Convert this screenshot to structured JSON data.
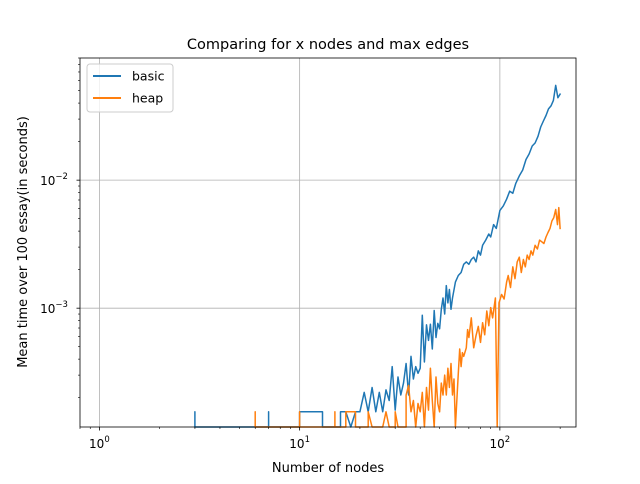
{
  "chart_data": {
    "type": "line",
    "title": "Comparing for x nodes and max edges",
    "xlabel": "Number of nodes",
    "ylabel": "Mean time over 100 essay(in seconds)",
    "xscale": "log",
    "yscale": "log",
    "xlim": [
      0.8,
      240
    ],
    "ylim": [
      0.000118,
      0.09
    ],
    "grid": true,
    "legend_position": "top-left",
    "x_ticks": [
      {
        "value": 1,
        "base": "10",
        "exp": "0"
      },
      {
        "value": 10,
        "base": "10",
        "exp": "1"
      },
      {
        "value": 100,
        "base": "10",
        "exp": "2"
      }
    ],
    "y_ticks": [
      {
        "value": 0.001,
        "base": "10",
        "exp": "−3"
      },
      {
        "value": 0.01,
        "base": "10",
        "exp": "−2"
      }
    ],
    "series": [
      {
        "name": "basic",
        "color": "#1f77b4",
        "points": [
          [
            3,
            0.000118
          ],
          [
            3,
            0.000155
          ],
          [
            3,
            0.000118
          ],
          [
            7,
            0.000118
          ],
          [
            7,
            0.000155
          ],
          [
            7,
            0.000118
          ],
          [
            10,
            0.000118
          ],
          [
            10,
            0.000155
          ],
          [
            13,
            0.000155
          ],
          [
            13,
            0.000118
          ],
          [
            16,
            0.000118
          ],
          [
            16,
            0.000155
          ],
          [
            17,
            0.000155
          ],
          [
            18,
            0.000118
          ],
          [
            19,
            0.000155
          ],
          [
            20,
            0.000155
          ],
          [
            21,
            0.00022
          ],
          [
            22,
            0.000155
          ],
          [
            23,
            0.00024
          ],
          [
            24,
            0.000155
          ],
          [
            25,
            0.00022
          ],
          [
            26,
            0.000155
          ],
          [
            27,
            0.00023
          ],
          [
            28,
            0.00019
          ],
          [
            29,
            0.00035
          ],
          [
            30,
            0.00016
          ],
          [
            31,
            0.00029
          ],
          [
            32,
            0.00021
          ],
          [
            33,
            0.00026
          ],
          [
            34,
            0.00037
          ],
          [
            35,
            0.00021
          ],
          [
            36,
            0.00042
          ],
          [
            37,
            0.00028
          ],
          [
            38,
            0.00035
          ],
          [
            39,
            0.00031
          ],
          [
            40,
            0.00034
          ],
          [
            41,
            0.00088
          ],
          [
            42,
            0.00038
          ],
          [
            43,
            0.00074
          ],
          [
            44,
            0.00056
          ],
          [
            45,
            0.00075
          ],
          [
            46,
            0.00048
          ],
          [
            47,
            0.00096
          ],
          [
            48,
            0.00059
          ],
          [
            49,
            0.00076
          ],
          [
            50,
            0.00069
          ],
          [
            51,
            0.00098
          ],
          [
            52,
            0.0012
          ],
          [
            53,
            0.0009
          ],
          [
            54,
            0.0015
          ],
          [
            55,
            0.0011
          ],
          [
            56,
            0.0014
          ],
          [
            57,
            0.00098
          ],
          [
            58,
            0.0012
          ],
          [
            60,
            0.0016
          ],
          [
            62,
            0.0018
          ],
          [
            64,
            0.0019
          ],
          [
            66,
            0.0022
          ],
          [
            68,
            0.0023
          ],
          [
            70,
            0.0022
          ],
          [
            72,
            0.0024
          ],
          [
            74,
            0.0025
          ],
          [
            76,
            0.0023
          ],
          [
            78,
            0.0028
          ],
          [
            80,
            0.0026
          ],
          [
            82,
            0.0031
          ],
          [
            85,
            0.0034
          ],
          [
            88,
            0.0038
          ],
          [
            90,
            0.0036
          ],
          [
            93,
            0.0045
          ],
          [
            96,
            0.0042
          ],
          [
            100,
            0.0058
          ],
          [
            104,
            0.0063
          ],
          [
            108,
            0.0071
          ],
          [
            112,
            0.0082
          ],
          [
            116,
            0.0079
          ],
          [
            120,
            0.0094
          ],
          [
            125,
            0.0108
          ],
          [
            130,
            0.012
          ],
          [
            135,
            0.0145
          ],
          [
            140,
            0.016
          ],
          [
            145,
            0.0185
          ],
          [
            150,
            0.0195
          ],
          [
            155,
            0.022
          ],
          [
            160,
            0.026
          ],
          [
            165,
            0.029
          ],
          [
            170,
            0.032
          ],
          [
            175,
            0.036
          ],
          [
            180,
            0.038
          ],
          [
            185,
            0.042
          ],
          [
            190,
            0.055
          ],
          [
            195,
            0.044
          ],
          [
            200,
            0.047
          ]
        ]
      },
      {
        "name": "heap",
        "color": "#ff7f0e",
        "points": [
          [
            6,
            0.000118
          ],
          [
            6,
            0.000155
          ],
          [
            6,
            0.000118
          ],
          [
            10,
            0.000118
          ],
          [
            10,
            0.000155
          ],
          [
            10,
            0.000118
          ],
          [
            15,
            0.000118
          ],
          [
            15,
            0.000155
          ],
          [
            15,
            0.000118
          ],
          [
            17,
            0.000118
          ],
          [
            17,
            0.000155
          ],
          [
            19,
            0.000155
          ],
          [
            19,
            0.000118
          ],
          [
            22,
            0.000118
          ],
          [
            22,
            0.000155
          ],
          [
            23,
            0.000118
          ],
          [
            26,
            0.000118
          ],
          [
            27,
            0.000155
          ],
          [
            28,
            0.000118
          ],
          [
            30,
            0.000118
          ],
          [
            30,
            0.000155
          ],
          [
            31,
            0.000118
          ],
          [
            34,
            0.000118
          ],
          [
            34,
            0.00021
          ],
          [
            35,
            0.00025
          ],
          [
            36,
            0.000155
          ],
          [
            37,
            0.00019
          ],
          [
            38,
            0.000118
          ],
          [
            39,
            0.00018
          ],
          [
            40,
            0.000155
          ],
          [
            41,
            0.00022
          ],
          [
            42,
            0.000118
          ],
          [
            43,
            0.00024
          ],
          [
            44,
            0.00016
          ],
          [
            45,
            0.00034
          ],
          [
            46,
            0.00019
          ],
          [
            47,
            0.000118
          ],
          [
            48,
            0.00029
          ],
          [
            49,
            0.00018
          ],
          [
            50,
            0.000155
          ],
          [
            51,
            0.00026
          ],
          [
            52,
            0.00021
          ],
          [
            53,
            0.0003
          ],
          [
            54,
            0.00021
          ],
          [
            55,
            0.00034
          ],
          [
            56,
            0.00024
          ],
          [
            57,
            0.00037
          ],
          [
            58,
            0.00021
          ],
          [
            59,
            0.00028
          ],
          [
            60,
            0.000118
          ],
          [
            62,
            0.00031
          ],
          [
            63,
            0.00048
          ],
          [
            64,
            0.00035
          ],
          [
            65,
            0.00045
          ],
          [
            66,
            0.00042
          ],
          [
            68,
            0.00049
          ],
          [
            69,
            0.00068
          ],
          [
            70,
            0.00059
          ],
          [
            72,
            0.00084
          ],
          [
            74,
            0.00049
          ],
          [
            76,
            0.00061
          ],
          [
            78,
            0.00072
          ],
          [
            80,
            0.00054
          ],
          [
            82,
            0.00077
          ],
          [
            84,
            0.00062
          ],
          [
            86,
            0.00095
          ],
          [
            88,
            0.00073
          ],
          [
            90,
            0.00101
          ],
          [
            92,
            0.00084
          ],
          [
            95,
            0.0012
          ],
          [
            97,
            0.000118
          ],
          [
            99,
            0.0011
          ],
          [
            102,
            0.00128
          ],
          [
            105,
            0.00118
          ],
          [
            108,
            0.0016
          ],
          [
            110,
            0.0018
          ],
          [
            113,
            0.00145
          ],
          [
            116,
            0.0021
          ],
          [
            119,
            0.0017
          ],
          [
            122,
            0.0023
          ],
          [
            125,
            0.0025
          ],
          [
            128,
            0.0019
          ],
          [
            131,
            0.0024
          ],
          [
            134,
            0.0021
          ],
          [
            137,
            0.0026
          ],
          [
            140,
            0.0024
          ],
          [
            143,
            0.0028
          ],
          [
            146,
            0.0026
          ],
          [
            150,
            0.0031
          ],
          [
            154,
            0.0029
          ],
          [
            158,
            0.0034
          ],
          [
            162,
            0.0033
          ],
          [
            166,
            0.0032
          ],
          [
            170,
            0.0036
          ],
          [
            174,
            0.0039
          ],
          [
            178,
            0.0042
          ],
          [
            182,
            0.0048
          ],
          [
            186,
            0.0051
          ],
          [
            190,
            0.0059
          ],
          [
            194,
            0.0045
          ],
          [
            197,
            0.0061
          ],
          [
            200,
            0.0042
          ]
        ]
      }
    ]
  }
}
